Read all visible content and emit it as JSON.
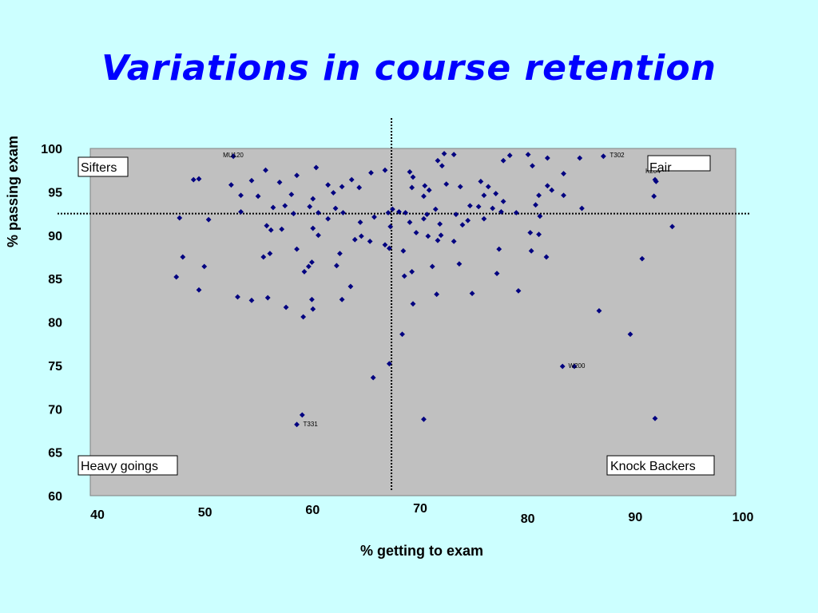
{
  "colors": {
    "background": "#ccffff",
    "plot_area": "#c0c0c0",
    "title": "#0000ff",
    "marker": "#000080"
  },
  "chart_data": {
    "type": "scatter",
    "title": "Variations in course retention",
    "xlabel": "% getting to exam",
    "ylabel": "% passing exam",
    "xlim": [
      40,
      100
    ],
    "ylim": [
      60,
      100
    ],
    "xticks": [
      "40",
      "50",
      "60",
      "70",
      "80",
      "90",
      "100"
    ],
    "yticks": [
      "60",
      "65",
      "70",
      "75",
      "80",
      "85",
      "90",
      "95",
      "100"
    ],
    "grid": false,
    "reference_lines": {
      "x": 68,
      "y": 92.5
    },
    "quadrant_labels": {
      "top_left": "Sifters",
      "top_right": "Fair",
      "bottom_left": "Heavy goings",
      "bottom_right": "Knock Backers"
    },
    "annotations": [
      {
        "text": "MU120",
        "x": 53.3,
        "y": 99.1
      },
      {
        "text": "T302",
        "x": 87.7,
        "y": 99.1
      },
      {
        "text": "K204",
        "x": 92.5,
        "y": 96.4
      },
      {
        "text": "W200",
        "x": 84.0,
        "y": 74.9
      },
      {
        "text": "T331",
        "x": 59.2,
        "y": 68.2
      }
    ],
    "points": [
      [
        53.3,
        99.1
      ],
      [
        87.7,
        99.1
      ],
      [
        72.9,
        99.4
      ],
      [
        73.8,
        99.3
      ],
      [
        79.0,
        99.2
      ],
      [
        80.7,
        99.3
      ],
      [
        82.5,
        98.9
      ],
      [
        85.5,
        98.9
      ],
      [
        78.4,
        98.6
      ],
      [
        72.3,
        98.6
      ],
      [
        56.3,
        97.5
      ],
      [
        61.0,
        97.8
      ],
      [
        67.4,
        97.5
      ],
      [
        69.7,
        97.3
      ],
      [
        72.7,
        98.0
      ],
      [
        81.1,
        98.0
      ],
      [
        84.0,
        97.1
      ],
      [
        59.2,
        96.9
      ],
      [
        66.1,
        97.2
      ],
      [
        64.3,
        96.4
      ],
      [
        70.0,
        96.7
      ],
      [
        49.6,
        96.4
      ],
      [
        50.1,
        96.5
      ],
      [
        55.0,
        96.3
      ],
      [
        57.6,
        96.1
      ],
      [
        53.1,
        95.8
      ],
      [
        62.1,
        95.8
      ],
      [
        63.4,
        95.6
      ],
      [
        65.0,
        95.5
      ],
      [
        71.1,
        95.7
      ],
      [
        73.1,
        95.9
      ],
      [
        74.4,
        95.6
      ],
      [
        76.3,
        96.2
      ],
      [
        77.0,
        95.6
      ],
      [
        81.7,
        94.6
      ],
      [
        82.5,
        95.7
      ],
      [
        82.9,
        95.2
      ],
      [
        84.0,
        94.6
      ],
      [
        92.6,
        96.2
      ],
      [
        58.7,
        94.7
      ],
      [
        60.7,
        94.2
      ],
      [
        62.6,
        94.9
      ],
      [
        69.9,
        95.5
      ],
      [
        71.0,
        94.5
      ],
      [
        71.5,
        95.2
      ],
      [
        75.3,
        93.4
      ],
      [
        76.6,
        94.6
      ],
      [
        77.7,
        94.8
      ],
      [
        78.4,
        93.9
      ],
      [
        81.4,
        93.5
      ],
      [
        92.4,
        94.5
      ],
      [
        55.6,
        94.5
      ],
      [
        54.0,
        94.6
      ],
      [
        57.0,
        93.2
      ],
      [
        58.1,
        93.4
      ],
      [
        60.4,
        93.3
      ],
      [
        62.8,
        93.1
      ],
      [
        66.4,
        92.1
      ],
      [
        67.7,
        92.6
      ],
      [
        68.1,
        93.0
      ],
      [
        69.3,
        92.6
      ],
      [
        71.3,
        92.4
      ],
      [
        72.1,
        93.0
      ],
      [
        74.0,
        92.4
      ],
      [
        75.1,
        91.7
      ],
      [
        76.1,
        93.3
      ],
      [
        77.4,
        93.1
      ],
      [
        78.2,
        92.7
      ],
      [
        79.6,
        92.6
      ],
      [
        81.8,
        92.2
      ],
      [
        85.7,
        93.1
      ],
      [
        48.3,
        92.0
      ],
      [
        51.0,
        91.8
      ],
      [
        54.0,
        92.7
      ],
      [
        56.4,
        91.1
      ],
      [
        58.9,
        92.5
      ],
      [
        61.2,
        92.6
      ],
      [
        62.1,
        91.9
      ],
      [
        63.5,
        92.6
      ],
      [
        65.1,
        91.5
      ],
      [
        67.9,
        91.0
      ],
      [
        68.7,
        92.7
      ],
      [
        69.7,
        91.5
      ],
      [
        71.0,
        91.9
      ],
      [
        72.5,
        91.3
      ],
      [
        74.6,
        91.2
      ],
      [
        76.6,
        91.9
      ],
      [
        94.1,
        91.0
      ],
      [
        56.8,
        90.6
      ],
      [
        57.8,
        90.7
      ],
      [
        60.7,
        90.8
      ],
      [
        61.2,
        90.0
      ],
      [
        64.6,
        89.5
      ],
      [
        65.2,
        89.9
      ],
      [
        66.0,
        89.3
      ],
      [
        67.4,
        88.9
      ],
      [
        67.8,
        88.5
      ],
      [
        70.3,
        90.3
      ],
      [
        71.4,
        89.9
      ],
      [
        72.3,
        89.4
      ],
      [
        72.6,
        90.0
      ],
      [
        73.8,
        89.3
      ],
      [
        80.9,
        90.3
      ],
      [
        81.7,
        90.1
      ],
      [
        78.0,
        88.4
      ],
      [
        81.0,
        88.2
      ],
      [
        69.1,
        88.2
      ],
      [
        48.6,
        87.5
      ],
      [
        56.1,
        87.5
      ],
      [
        56.7,
        87.9
      ],
      [
        59.2,
        88.4
      ],
      [
        63.2,
        87.9
      ],
      [
        82.4,
        87.5
      ],
      [
        91.3,
        87.3
      ],
      [
        50.6,
        86.4
      ],
      [
        59.9,
        85.8
      ],
      [
        60.3,
        86.4
      ],
      [
        60.6,
        86.9
      ],
      [
        62.9,
        86.5
      ],
      [
        69.2,
        85.3
      ],
      [
        69.9,
        85.8
      ],
      [
        71.8,
        86.4
      ],
      [
        74.3,
        86.7
      ],
      [
        77.8,
        85.6
      ],
      [
        48.0,
        85.2
      ],
      [
        50.1,
        83.7
      ],
      [
        53.7,
        82.9
      ],
      [
        55.0,
        82.5
      ],
      [
        56.5,
        82.8
      ],
      [
        60.6,
        82.6
      ],
      [
        63.4,
        82.6
      ],
      [
        64.2,
        84.1
      ],
      [
        72.2,
        83.2
      ],
      [
        75.5,
        83.3
      ],
      [
        79.8,
        83.6
      ],
      [
        58.2,
        81.7
      ],
      [
        59.8,
        80.6
      ],
      [
        60.7,
        81.5
      ],
      [
        70.0,
        82.1
      ],
      [
        87.3,
        81.3
      ],
      [
        69.0,
        78.6
      ],
      [
        90.2,
        78.6
      ],
      [
        67.8,
        75.2
      ],
      [
        83.9,
        74.9
      ],
      [
        85.0,
        74.9
      ],
      [
        66.3,
        73.6
      ],
      [
        59.7,
        69.3
      ],
      [
        59.2,
        68.2
      ],
      [
        71.0,
        68.8
      ],
      [
        92.5,
        68.9
      ],
      [
        92.5,
        96.4
      ]
    ]
  }
}
